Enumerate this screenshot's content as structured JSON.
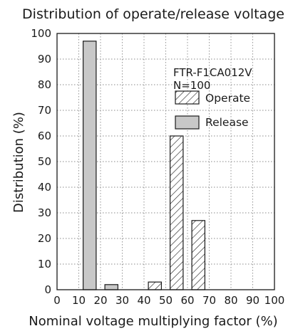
{
  "chart_data": {
    "type": "bar",
    "title": "Distribution of operate/release voltage",
    "xlabel": "Nominal voltage multiplying factor (%)",
    "ylabel": "Distribution (%)",
    "xlim": [
      0,
      100
    ],
    "ylim": [
      0,
      100
    ],
    "xticks": [
      "0",
      "10",
      "20",
      "30",
      "40",
      "50",
      "60",
      "70",
      "80",
      "90",
      "100"
    ],
    "yticks": [
      "0",
      "10",
      "20",
      "30",
      "40",
      "50",
      "60",
      "70",
      "80",
      "90",
      "100"
    ],
    "grid": true,
    "annotation": [
      "FTR-F1CA012V",
      "N=100"
    ],
    "legend_position": "top-right",
    "series": [
      {
        "name": "Release",
        "style": "gray",
        "bars": [
          {
            "x0": 12,
            "x1": 18,
            "value": 97
          },
          {
            "x0": 22,
            "x1": 28,
            "value": 2
          }
        ]
      },
      {
        "name": "Operate",
        "style": "hatched",
        "bars": [
          {
            "x0": 42,
            "x1": 48,
            "value": 3
          },
          {
            "x0": 52,
            "x1": 58,
            "value": 60
          },
          {
            "x0": 62,
            "x1": 68,
            "value": 27
          }
        ]
      }
    ],
    "colors": {
      "release_fill": "#c8c8c8",
      "stroke": "#1a1a1a",
      "grid": "#8a8a8a"
    }
  }
}
